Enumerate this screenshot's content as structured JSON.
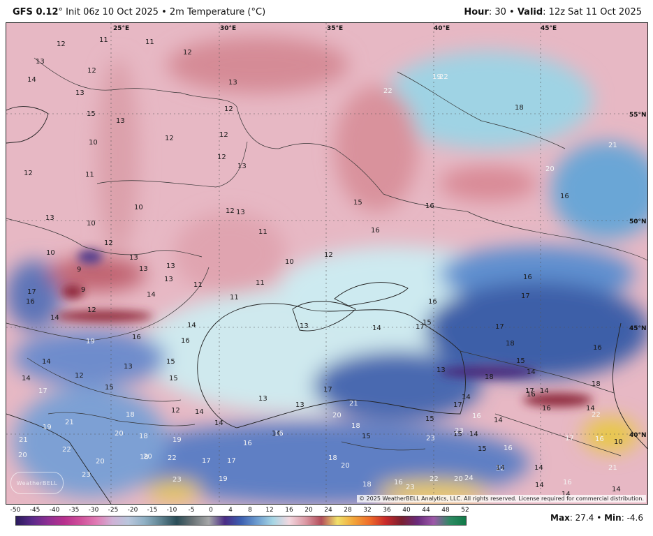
{
  "header": {
    "model": "GFS 0.12",
    "degree": "°",
    "init": " Init 06z 10 Oct 2025",
    "bullet": " • ",
    "variable": "2m Temperature (°C)",
    "hour_label": "Hour",
    "hour_value": ": 30",
    "valid_label": "Valid",
    "valid_value": ": 12z Sat 11 Oct 2025"
  },
  "map": {
    "longitude_labels": [
      "25°E",
      "30°E",
      "35°E",
      "40°E",
      "45°E"
    ],
    "latitude_labels": [
      "55°N",
      "50°N",
      "45°N",
      "40°N"
    ],
    "copyright": "© 2025 WeatherBELL Analytics, LLC. All rights reserved. License required for commercial distribution.",
    "logo": "WeatherBELL",
    "temperature_labels": [
      "12",
      "11",
      "11",
      "12",
      "13",
      "12",
      "14",
      "13",
      "15",
      "13",
      "10",
      "12",
      "12",
      "13",
      "12",
      "12",
      "13",
      "12",
      "11",
      "10",
      "12",
      "13",
      "13",
      "10",
      "12",
      "11",
      "10",
      "9",
      "13",
      "13",
      "13",
      "13",
      "17",
      "9",
      "11",
      "10",
      "12",
      "14",
      "16",
      "12",
      "14",
      "11",
      "11",
      "14",
      "13",
      "14",
      "15",
      "16",
      "17",
      "16",
      "19",
      "16",
      "13",
      "16",
      "15",
      "14",
      "12",
      "15",
      "17",
      "15",
      "19",
      "21",
      "14",
      "18",
      "20",
      "18",
      "12",
      "14",
      "21",
      "20",
      "22",
      "23",
      "20",
      "19",
      "22",
      "20",
      "17",
      "17",
      "19",
      "23",
      "18",
      "14",
      "16",
      "14",
      "13",
      "13",
      "17",
      "21",
      "20",
      "18",
      "15",
      "16",
      "18",
      "20",
      "16",
      "18",
      "23",
      "23",
      "15",
      "14",
      "16",
      "14",
      "22",
      "17",
      "16",
      "22",
      "20",
      "24",
      "23",
      "22",
      "14",
      "21",
      "15",
      "13",
      "17",
      "14",
      "18",
      "17",
      "14",
      "15",
      "18",
      "16",
      "14",
      "16",
      "15",
      "18",
      "17",
      "16",
      "14",
      "14",
      "10",
      "14",
      "16",
      "14",
      "14",
      "16",
      "17",
      "16",
      "15",
      "16",
      "19",
      "18",
      "22",
      "22",
      "21",
      "20",
      "16"
    ]
  },
  "colorbar": {
    "ticks": [
      "-50",
      "-45",
      "-40",
      "-35",
      "-30",
      "-25",
      "-20",
      "-15",
      "-10",
      "-5",
      "0",
      "4",
      "8",
      "12",
      "16",
      "20",
      "24",
      "28",
      "32",
      "36",
      "40",
      "44",
      "48",
      "52"
    ]
  },
  "stats": {
    "max_label": "Max",
    "max_value": ": 27.4",
    "sep": " • ",
    "min_label": "Min",
    "min_value": ": -4.6"
  }
}
